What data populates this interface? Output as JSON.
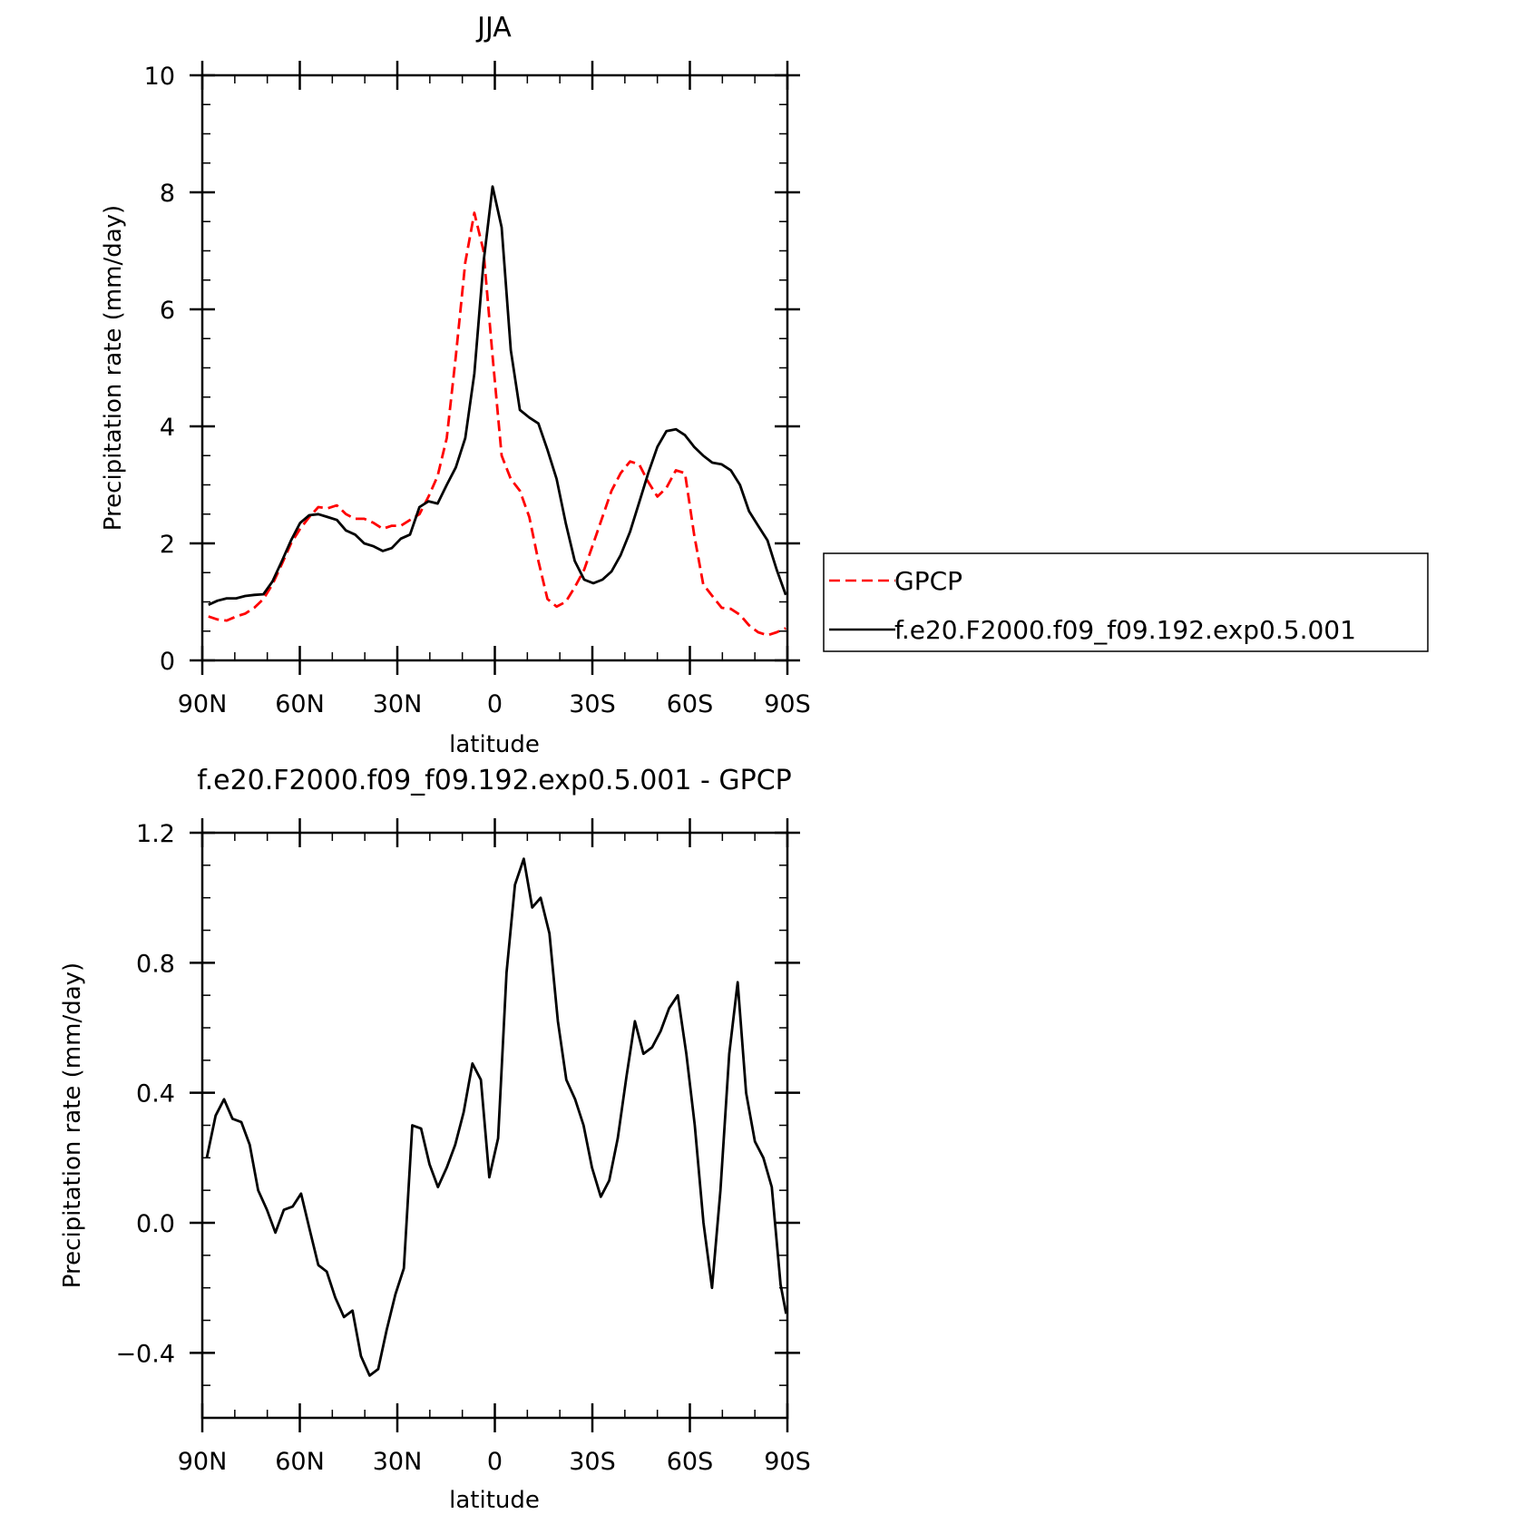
{
  "chart_data": [
    {
      "type": "line",
      "title": "JJA",
      "xlabel": "latitude",
      "ylabel": "Precipitation rate (mm/day)",
      "xlim": [
        90,
        -90
      ],
      "ylim": [
        0,
        10
      ],
      "x_ticks": [
        90,
        60,
        30,
        0,
        -30,
        -60,
        -90
      ],
      "x_tick_labels": [
        "90N",
        "60N",
        "30N",
        "0",
        "30S",
        "60S",
        "90S"
      ],
      "y_ticks": [
        0,
        2,
        4,
        6,
        8,
        10
      ],
      "y_tick_labels": [
        "0",
        "2",
        "4",
        "6",
        "8",
        "10"
      ],
      "legend_position": "right",
      "grid": false,
      "x": [
        88.1,
        85.3,
        82.5,
        79.6,
        76.8,
        74.0,
        71.2,
        68.4,
        65.5,
        62.7,
        59.9,
        57.1,
        54.3,
        51.4,
        48.6,
        45.8,
        43.0,
        40.2,
        37.3,
        34.5,
        31.7,
        28.9,
        26.1,
        23.2,
        20.4,
        17.6,
        14.8,
        12.0,
        9.1,
        6.3,
        3.5,
        0.7,
        -2.1,
        -4.9,
        -7.7,
        -10.6,
        -13.4,
        -16.2,
        -19.0,
        -21.8,
        -24.6,
        -27.5,
        -30.3,
        -33.1,
        -35.9,
        -38.7,
        -41.6,
        -44.4,
        -47.2,
        -50.0,
        -52.8,
        -55.7,
        -58.5,
        -61.3,
        -64.1,
        -66.9,
        -69.8,
        -72.6,
        -75.4,
        -78.2,
        -81.0,
        -83.9,
        -86.7,
        -89.5
      ],
      "series": [
        {
          "name": "GPCP",
          "color": "#ff0000",
          "dash": "dashed",
          "values": [
            0.75,
            0.7,
            0.68,
            0.75,
            0.8,
            0.9,
            1.05,
            1.3,
            1.65,
            2.0,
            2.25,
            2.45,
            2.62,
            2.6,
            2.65,
            2.5,
            2.42,
            2.42,
            2.35,
            2.25,
            2.3,
            2.3,
            2.4,
            2.5,
            2.8,
            3.15,
            3.8,
            5.2,
            6.8,
            7.65,
            7.0,
            5.2,
            3.5,
            3.1,
            2.9,
            2.45,
            1.7,
            1.05,
            0.92,
            1.0,
            1.25,
            1.55,
            2.0,
            2.45,
            2.9,
            3.2,
            3.4,
            3.35,
            3.05,
            2.8,
            2.95,
            3.25,
            3.2,
            2.15,
            1.3,
            1.1,
            0.9,
            0.88,
            0.78,
            0.6,
            0.48,
            0.43,
            0.48,
            0.55
          ]
        },
        {
          "name": "f.e20.F2000.f09_f09.192.exp0.5.001",
          "color": "#000000",
          "dash": "solid",
          "values": [
            0.95,
            1.02,
            1.06,
            1.06,
            1.1,
            1.12,
            1.13,
            1.35,
            1.7,
            2.05,
            2.35,
            2.48,
            2.5,
            2.45,
            2.4,
            2.22,
            2.15,
            2.0,
            1.95,
            1.87,
            1.92,
            2.08,
            2.15,
            2.62,
            2.72,
            2.68,
            3.0,
            3.3,
            3.8,
            4.9,
            6.8,
            8.1,
            7.4,
            5.3,
            4.28,
            4.15,
            4.05,
            3.6,
            3.1,
            2.35,
            1.7,
            1.38,
            1.32,
            1.38,
            1.52,
            1.8,
            2.2,
            2.7,
            3.2,
            3.65,
            3.92,
            3.95,
            3.85,
            3.65,
            3.5,
            3.38,
            3.35,
            3.25,
            3.0,
            2.55,
            2.3,
            2.05,
            1.55,
            1.12
          ]
        }
      ]
    },
    {
      "type": "line",
      "title": "f.e20.F2000.f09_f09.192.exp0.5.001 - GPCP",
      "xlabel": "latitude",
      "ylabel": "Precipitation rate (mm/day)",
      "xlim": [
        90,
        -90
      ],
      "ylim": [
        -0.6,
        1.2
      ],
      "x_ticks": [
        90,
        60,
        30,
        0,
        -30,
        -60,
        -90
      ],
      "x_tick_labels": [
        "90N",
        "60N",
        "30N",
        "0",
        "30S",
        "60S",
        "90S"
      ],
      "y_ticks": [
        -0.4,
        0.0,
        0.4,
        0.8,
        1.2
      ],
      "y_tick_labels": [
        "−0.4",
        "0.0",
        "0.4",
        "0.8",
        "1.2"
      ],
      "grid": false,
      "x": [
        88.6,
        85.9,
        83.3,
        80.7,
        78.0,
        75.4,
        72.8,
        70.1,
        67.5,
        64.9,
        62.2,
        59.6,
        57.0,
        54.3,
        51.7,
        49.1,
        46.4,
        43.8,
        41.2,
        38.5,
        35.9,
        33.3,
        30.6,
        28.0,
        25.4,
        22.7,
        20.1,
        17.5,
        14.8,
        12.2,
        9.6,
        6.9,
        4.3,
        1.7,
        -1.0,
        -3.6,
        -6.2,
        -8.9,
        -11.5,
        -14.1,
        -16.8,
        -19.4,
        -22.0,
        -24.7,
        -27.3,
        -29.9,
        -32.6,
        -35.2,
        -37.8,
        -40.5,
        -43.1,
        -45.7,
        -48.4,
        -51.0,
        -53.6,
        -56.3,
        -58.9,
        -61.5,
        -64.2,
        -66.8,
        -69.4,
        -72.1,
        -74.7,
        -77.3,
        -80.0,
        -82.6,
        -85.2,
        -87.9,
        -89.6
      ],
      "series": [
        {
          "color": "#000000",
          "values": [
            0.2,
            0.33,
            0.38,
            0.32,
            0.31,
            0.24,
            0.1,
            0.04,
            -0.03,
            0.04,
            0.05,
            0.09,
            -0.02,
            -0.13,
            -0.15,
            -0.23,
            -0.29,
            -0.27,
            -0.41,
            -0.47,
            -0.45,
            -0.33,
            -0.22,
            -0.14,
            0.3,
            0.29,
            0.18,
            0.11,
            0.17,
            0.24,
            0.34,
            0.49,
            0.44,
            0.14,
            0.26,
            0.77,
            1.04,
            1.12,
            0.97,
            1.0,
            0.89,
            0.62,
            0.44,
            0.38,
            0.3,
            0.17,
            0.08,
            0.13,
            0.26,
            0.45,
            0.62,
            0.52,
            0.54,
            0.59,
            0.66,
            0.7,
            0.52,
            0.3,
            0.0,
            -0.2,
            0.1,
            0.52,
            0.74,
            0.4,
            0.25,
            0.2,
            0.11,
            -0.19,
            -0.28
          ]
        }
      ]
    }
  ]
}
